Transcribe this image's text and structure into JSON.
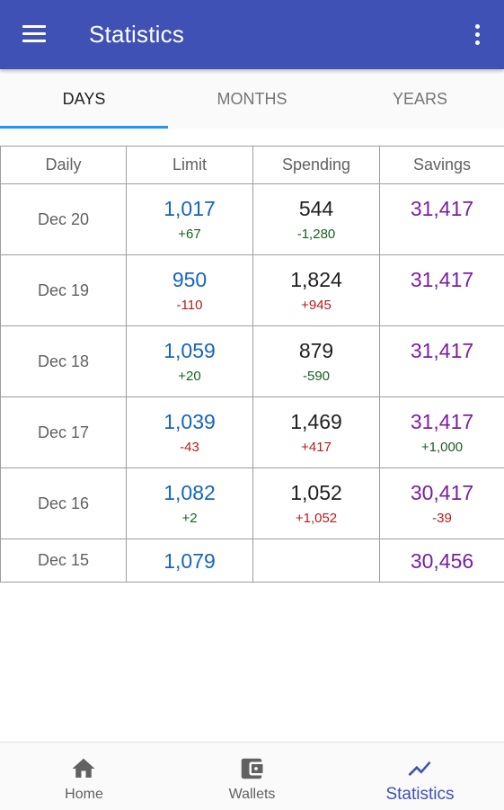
{
  "appbar": {
    "title": "Statistics",
    "menu_icon": "menu-icon",
    "overflow_icon": "more-vert-icon"
  },
  "tabs": [
    {
      "label": "DAYS",
      "active": true
    },
    {
      "label": "MONTHS",
      "active": false
    },
    {
      "label": "YEARS",
      "active": false
    }
  ],
  "table": {
    "headers": [
      "Daily",
      "Limit",
      "Spending",
      "Savings"
    ],
    "rows": [
      {
        "date": "Dec 20",
        "limit": "1,017",
        "limit_delta": "+67",
        "spending": "544",
        "spending_delta": "-1,280",
        "savings": "31,417",
        "savings_delta": ""
      },
      {
        "date": "Dec 19",
        "limit": "950",
        "limit_delta": "-110",
        "spending": "1,824",
        "spending_delta": "+945",
        "savings": "31,417",
        "savings_delta": ""
      },
      {
        "date": "Dec 18",
        "limit": "1,059",
        "limit_delta": "+20",
        "spending": "879",
        "spending_delta": "-590",
        "savings": "31,417",
        "savings_delta": ""
      },
      {
        "date": "Dec 17",
        "limit": "1,039",
        "limit_delta": "-43",
        "spending": "1,469",
        "spending_delta": "+417",
        "savings": "31,417",
        "savings_delta": "+1,000"
      },
      {
        "date": "Dec 16",
        "limit": "1,082",
        "limit_delta": "+2",
        "spending": "1,052",
        "spending_delta": "+1,052",
        "savings": "30,417",
        "savings_delta": "-39"
      },
      {
        "date": "Dec 15",
        "limit": "1,079",
        "limit_delta": "",
        "spending": "",
        "spending_delta": "",
        "savings": "30,456",
        "savings_delta": ""
      }
    ]
  },
  "bottom_nav": [
    {
      "label": "Home",
      "icon": "home-icon",
      "active": false
    },
    {
      "label": "Wallets",
      "icon": "wallet-icon",
      "active": false
    },
    {
      "label": "Statistics",
      "icon": "trending-up-icon",
      "active": true
    }
  ],
  "colors": {
    "appbar": "#3f51b5",
    "tab_indicator": "#2196f3",
    "limit_value": "#1565c0",
    "savings_value": "#7b1fa2",
    "positive_delta": "#1b5e20",
    "negative_delta": "#b71c1c"
  }
}
